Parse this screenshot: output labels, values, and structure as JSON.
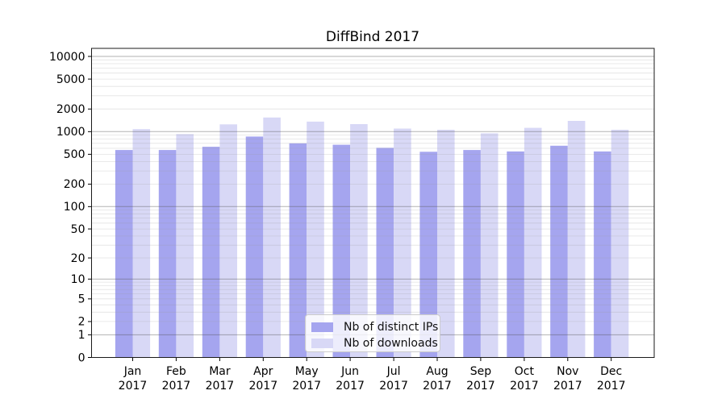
{
  "chart_data": {
    "type": "bar",
    "title": "DiffBind 2017",
    "year_label": "2017",
    "categories": [
      "Jan",
      "Feb",
      "Mar",
      "Apr",
      "May",
      "Jun",
      "Jul",
      "Aug",
      "Sep",
      "Oct",
      "Nov",
      "Dec"
    ],
    "series": [
      {
        "name": "Nb of distinct IPs",
        "color": "#a5a5ef",
        "values": [
          570,
          570,
          630,
          860,
          700,
          670,
          610,
          540,
          570,
          545,
          650,
          545
        ]
      },
      {
        "name": "Nb of downloads",
        "color": "#d8d8f6",
        "values": [
          1080,
          930,
          1250,
          1540,
          1360,
          1260,
          1100,
          1060,
          950,
          1125,
          1390,
          1060
        ]
      }
    ],
    "y_scale": "log10(1+x)",
    "ylim": [
      0,
      10000
    ],
    "y_ticks": [
      0,
      1,
      2,
      5,
      10,
      20,
      50,
      100,
      200,
      500,
      1000,
      2000,
      5000,
      10000
    ],
    "major_gridlines": [
      1,
      10,
      100,
      1000,
      10000
    ],
    "grid": true,
    "legend_position": "lower center",
    "xlabel": "",
    "ylabel": ""
  },
  "colors": {
    "background": "#ffffff",
    "axis": "#1a1a1a",
    "major_grid": "#b0b0b0",
    "minor_grid": "#e6e6e6",
    "text": "#000000"
  }
}
